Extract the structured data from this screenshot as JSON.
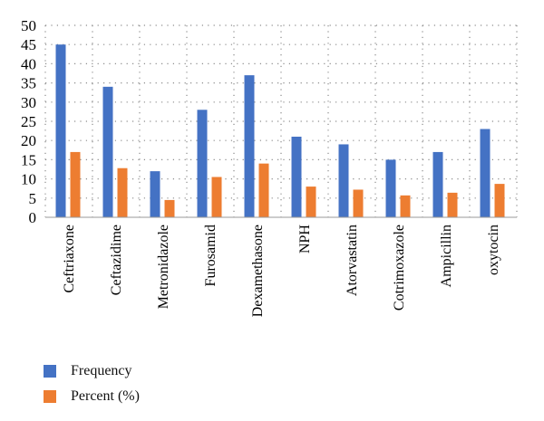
{
  "chart_data": {
    "type": "bar",
    "categories": [
      "Ceftriaxone",
      "Ceftazidime",
      "Metronidazole",
      "Furosamid",
      "Dexamethasone",
      "NPH",
      "Atorvastatin",
      "Cotrimoxazole",
      "Ampicillin",
      "oxytocin"
    ],
    "series": [
      {
        "name": "Frequency",
        "color": "#4472C4",
        "values": [
          45,
          34,
          12,
          28,
          37,
          21,
          19,
          15,
          17,
          23
        ]
      },
      {
        "name": "Percent (%)",
        "color": "#ED7D31",
        "values": [
          17,
          12.8,
          4.5,
          10.5,
          14,
          8,
          7.2,
          5.7,
          6.4,
          8.7
        ]
      }
    ],
    "ylim": [
      0,
      50
    ],
    "yticks": [
      "0",
      "5",
      "10",
      "15",
      "20",
      "25",
      "30",
      "35",
      "40",
      "45",
      "50"
    ],
    "grid": "dotted",
    "legend_position": "bottom-left"
  }
}
